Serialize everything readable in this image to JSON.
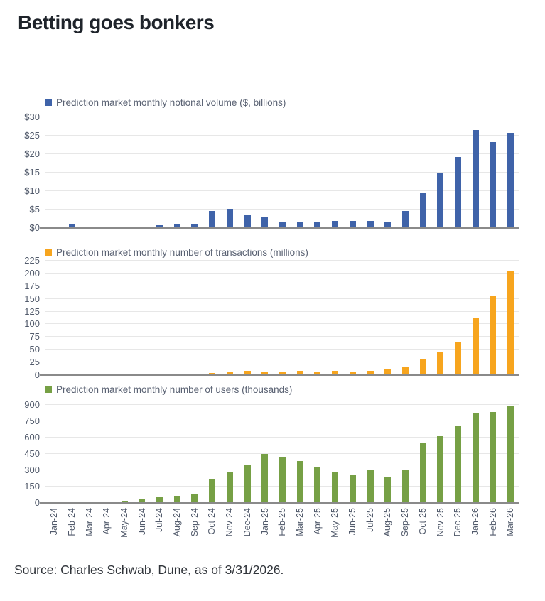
{
  "page": {
    "title": "Betting goes bonkers",
    "source": "Source: Charles Schwab, Dune, as of 3/31/2026."
  },
  "colors": {
    "volume_blue": "#3f63a9",
    "transactions_orange": "#f7a51e",
    "users_green": "#76a045",
    "gridline": "#e7e7e7",
    "axis_line": "#8a8a8a",
    "tick_text": "#515a6b",
    "legend_text": "#5a6273",
    "title_text": "#1f242b"
  },
  "chart_data": [
    {
      "type": "bar",
      "title": "Prediction market monthly notional volume ($, billions)",
      "color": "#3f63a9",
      "ylim": [
        0,
        30
      ],
      "ymax": 30,
      "grid": true,
      "legend_position": "top-left",
      "yticks": [
        {
          "label": "$0",
          "value": 0
        },
        {
          "label": "$5",
          "value": 5
        },
        {
          "label": "$10",
          "value": 10
        },
        {
          "label": "$15",
          "value": 15
        },
        {
          "label": "$20",
          "value": 20
        },
        {
          "label": "$25",
          "value": 25
        },
        {
          "label": "$30",
          "value": 30
        }
      ],
      "categories": [
        "Jan-24",
        "Feb-24",
        "Mar-24",
        "Apr-24",
        "May-24",
        "Jun-24",
        "Jul-24",
        "Aug-24",
        "Sep-24",
        "Oct-24",
        "Nov-24",
        "Dec-24",
        "Jan-25",
        "Feb-25",
        "Mar-25",
        "Apr-25",
        "May-25",
        "Jun-25",
        "Jul-25",
        "Aug-25",
        "Sep-25",
        "Oct-25",
        "Nov-25",
        "Dec-25",
        "Jan-26",
        "Feb-26",
        "Mar-26"
      ],
      "values": [
        0,
        1.0,
        0,
        0,
        0,
        0.2,
        0.8,
        1.0,
        0.9,
        4.6,
        5.2,
        3.6,
        2.8,
        1.7,
        1.7,
        1.6,
        1.9,
        2.0,
        1.9,
        1.7,
        4.6,
        9.7,
        14.8,
        19.3,
        26.6,
        23.2,
        25.7
      ]
    },
    {
      "type": "bar",
      "title": "Prediction market monthly number of transactions (millions)",
      "color": "#f7a51e",
      "ylim": [
        0,
        225
      ],
      "ymax": 225,
      "grid": true,
      "legend_position": "top-left",
      "yticks": [
        {
          "label": "0",
          "value": 0
        },
        {
          "label": "25",
          "value": 25
        },
        {
          "label": "50",
          "value": 50
        },
        {
          "label": "75",
          "value": 75
        },
        {
          "label": "100",
          "value": 100
        },
        {
          "label": "125",
          "value": 125
        },
        {
          "label": "150",
          "value": 150
        },
        {
          "label": "175",
          "value": 175
        },
        {
          "label": "200",
          "value": 200
        },
        {
          "label": "225",
          "value": 225
        }
      ],
      "categories": [
        "Jan-24",
        "Feb-24",
        "Mar-24",
        "Apr-24",
        "May-24",
        "Jun-24",
        "Jul-24",
        "Aug-24",
        "Sep-24",
        "Oct-24",
        "Nov-24",
        "Dec-24",
        "Jan-25",
        "Feb-25",
        "Mar-25",
        "Apr-25",
        "May-25",
        "Jun-25",
        "Jul-25",
        "Aug-25",
        "Sep-25",
        "Oct-25",
        "Nov-25",
        "Dec-25",
        "Jan-26",
        "Feb-26",
        "Mar-26"
      ],
      "values": [
        0,
        0,
        0,
        0,
        0,
        0,
        0,
        0,
        1,
        4,
        6,
        9,
        6,
        6,
        8,
        6,
        8,
        7,
        9,
        11,
        16,
        31,
        46,
        65,
        112,
        155,
        205
      ]
    },
    {
      "type": "bar",
      "title": "Prediction market monthly number of users (thousands)",
      "color": "#76a045",
      "ylim": [
        0,
        900
      ],
      "ymax": 900,
      "grid": true,
      "legend_position": "top-left",
      "yticks": [
        {
          "label": "0",
          "value": 0
        },
        {
          "label": "150",
          "value": 150
        },
        {
          "label": "300",
          "value": 300
        },
        {
          "label": "450",
          "value": 450
        },
        {
          "label": "600",
          "value": 600
        },
        {
          "label": "750",
          "value": 750
        },
        {
          "label": "900",
          "value": 900
        }
      ],
      "categories": [
        "Jan-24",
        "Feb-24",
        "Mar-24",
        "Apr-24",
        "May-24",
        "Jun-24",
        "Jul-24",
        "Aug-24",
        "Sep-24",
        "Oct-24",
        "Nov-24",
        "Dec-24",
        "Jan-25",
        "Feb-25",
        "Mar-25",
        "Apr-25",
        "May-25",
        "Jun-25",
        "Jul-25",
        "Aug-25",
        "Sep-25",
        "Oct-25",
        "Nov-25",
        "Dec-25",
        "Jan-26",
        "Feb-26",
        "Mar-26"
      ],
      "values": [
        0,
        0,
        0,
        0,
        20,
        40,
        55,
        68,
        85,
        225,
        290,
        345,
        450,
        420,
        385,
        335,
        290,
        255,
        300,
        240,
        300,
        545,
        615,
        705,
        830,
        835,
        885
      ]
    }
  ]
}
